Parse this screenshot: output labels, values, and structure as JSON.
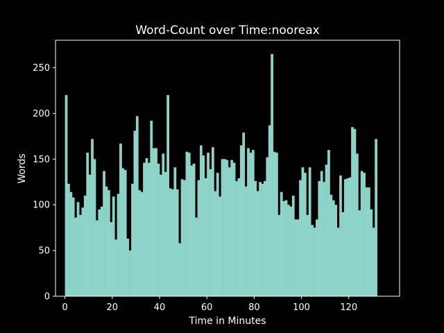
{
  "chart_data": {
    "type": "bar",
    "title": "Word-Count over Time:nooreax",
    "xlabel": "Time in Minutes",
    "ylabel": "Words",
    "xlim": [
      -4,
      141.5
    ],
    "ylim": [
      0,
      280
    ],
    "xticks": [
      0,
      20,
      40,
      60,
      80,
      100,
      120
    ],
    "yticks": [
      0,
      50,
      100,
      150,
      200,
      250
    ],
    "grid": false,
    "colors": {
      "background": "#000000",
      "bar": "#8dd3c7",
      "axis": "#ffffff",
      "text": "#ffffff"
    },
    "x_start": 0,
    "x_step": 1,
    "values": [
      220,
      123,
      114,
      108,
      86,
      103,
      89,
      97,
      110,
      157,
      133,
      172,
      150,
      83,
      95,
      98,
      137,
      120,
      116,
      81,
      109,
      62,
      112,
      167,
      140,
      138,
      63,
      50,
      123,
      181,
      197,
      116,
      114,
      146,
      151,
      146,
      192,
      162,
      162,
      145,
      133,
      156,
      136,
      220,
      118,
      117,
      141,
      117,
      58,
      128,
      127,
      158,
      157,
      143,
      145,
      86,
      127,
      165,
      154,
      129,
      157,
      139,
      163,
      115,
      135,
      109,
      150,
      150,
      149,
      141,
      149,
      146,
      126,
      129,
      165,
      179,
      120,
      162,
      157,
      160,
      126,
      115,
      125,
      123,
      126,
      152,
      187,
      265,
      158,
      157,
      89,
      114,
      104,
      105,
      100,
      98,
      110,
      84,
      84,
      127,
      141,
      135,
      89,
      141,
      78,
      75,
      84,
      126,
      137,
      125,
      144,
      160,
      111,
      105,
      100,
      75,
      132,
      92,
      128,
      129,
      130,
      185,
      183,
      156,
      94,
      137,
      135,
      119,
      119,
      95,
      75,
      172
    ]
  }
}
